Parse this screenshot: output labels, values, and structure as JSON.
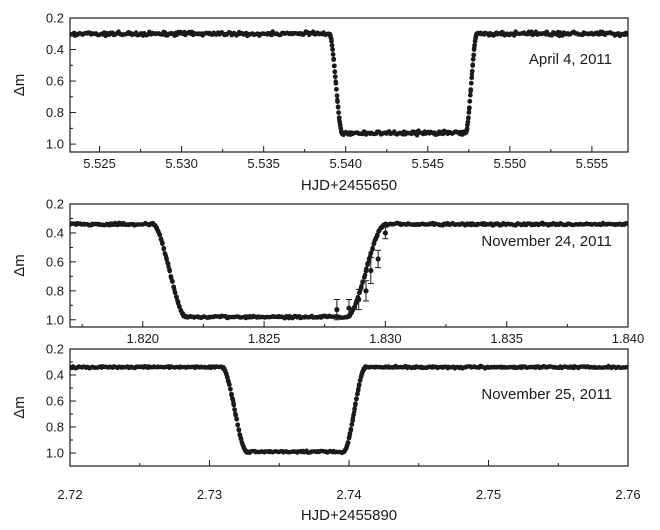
{
  "chart_data": [
    {
      "type": "scatter",
      "panel": "top",
      "xlabel": "HJD+2455650",
      "ylabel": "Δm",
      "xlim": [
        5.5232,
        5.5572
      ],
      "ylim": [
        1.05,
        0.2
      ],
      "y_inverted": true,
      "xticks": [
        5.525,
        5.53,
        5.535,
        5.54,
        5.545,
        5.55,
        5.555
      ],
      "xtick_labels": [
        "5.525",
        "5.530",
        "5.535",
        "5.540",
        "5.545",
        "5.550",
        "5.555"
      ],
      "yticks": [
        0.2,
        0.4,
        0.6,
        0.8,
        1.0
      ],
      "ytick_labels": [
        "0.2",
        "0.4",
        "0.6",
        "0.8",
        "1.0"
      ],
      "annotation": "April 4, 2011",
      "profile": {
        "baseline": 0.3,
        "depth": 0.93,
        "ingress": [
          5.539,
          5.5398
        ],
        "egress": [
          5.5473,
          5.548
        ]
      },
      "error_bars": []
    },
    {
      "type": "scatter",
      "panel": "middle",
      "xlabel": "",
      "ylabel": "Δm",
      "xlim": [
        1.817,
        1.84
      ],
      "ylim": [
        1.05,
        0.2
      ],
      "y_inverted": true,
      "xticks": [
        1.82,
        1.825,
        1.83,
        1.835,
        1.84
      ],
      "xtick_labels": [
        "1.820",
        "1.825",
        "1.830",
        "1.835",
        "1.840"
      ],
      "yticks": [
        0.2,
        0.4,
        0.6,
        0.8,
        1.0
      ],
      "ytick_labels": [
        "0.2",
        "0.4",
        "0.6",
        "0.8",
        "1.0"
      ],
      "annotation": "November 24, 2011",
      "profile": {
        "baseline": 0.34,
        "depth": 0.98,
        "ingress": [
          1.8204,
          1.8218
        ],
        "egress": [
          1.8284,
          1.83
        ]
      },
      "error_bars": [
        {
          "x": 1.828,
          "y": 0.93,
          "err": 0.07
        },
        {
          "x": 1.8285,
          "y": 0.92,
          "err": 0.06
        },
        {
          "x": 1.8289,
          "y": 0.86,
          "err": 0.07
        },
        {
          "x": 1.8292,
          "y": 0.8,
          "err": 0.07
        },
        {
          "x": 1.8294,
          "y": 0.66,
          "err": 0.09
        },
        {
          "x": 1.8297,
          "y": 0.58,
          "err": 0.06
        },
        {
          "x": 1.83,
          "y": 0.4,
          "err": 0.04
        }
      ]
    },
    {
      "type": "scatter",
      "panel": "bottom",
      "xlabel": "HJD+2455890",
      "ylabel": "Δm",
      "xlim": [
        2.72,
        2.76
      ],
      "ylim": [
        1.1,
        0.2
      ],
      "y_inverted": true,
      "xticks": [
        2.72,
        2.73,
        2.74,
        2.75,
        2.76
      ],
      "xtick_labels": [
        "2.72",
        "2.73",
        "2.74",
        "2.75",
        "2.76"
      ],
      "yticks": [
        0.2,
        0.4,
        0.6,
        0.8,
        1.0
      ],
      "ytick_labels": [
        "0.2",
        "0.4",
        "0.6",
        "0.8",
        "1.0"
      ],
      "annotation": "November 25, 2011",
      "profile": {
        "baseline": 0.34,
        "depth": 0.99,
        "ingress": [
          2.7309,
          2.7327
        ],
        "egress": [
          2.7396,
          2.7412
        ]
      },
      "error_bars": []
    }
  ]
}
